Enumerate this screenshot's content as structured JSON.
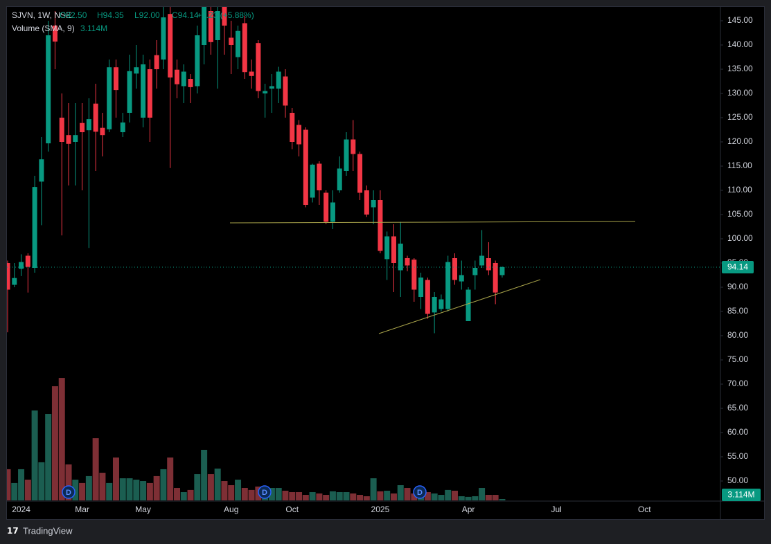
{
  "chart_data": {
    "type": "candlestick",
    "symbol": "SJVN, 1W, NSE",
    "legend_values": [
      "O92.50",
      "H94.35",
      "L92.00",
      "C94.14",
      "+5.23 (+5.88%)"
    ],
    "volume_title": "Volume (SMA, 9)",
    "volume_sma_label": "3.114M",
    "dividend_markers": [
      "D",
      "D",
      "D"
    ],
    "brand": "TradingView",
    "up_color": "#089981",
    "down_color": "#f23645",
    "volume_up_color": "#1b5e51",
    "volume_down_color": "#7e2f35",
    "ylim": [
      50,
      145
    ],
    "yticks": [
      {
        "value": 50,
        "label": "50.00"
      },
      {
        "value": 55,
        "label": "55.00"
      },
      {
        "value": 60,
        "label": "60.00"
      },
      {
        "value": 65,
        "label": "65.00"
      },
      {
        "value": 70,
        "label": "70.00"
      },
      {
        "value": 75,
        "label": "75.00"
      },
      {
        "value": 80,
        "label": "80.00"
      },
      {
        "value": 85,
        "label": "85.00"
      },
      {
        "value": 90,
        "label": "90.00"
      },
      {
        "value": 95,
        "label": "95.00"
      },
      {
        "value": 100,
        "label": "100.00"
      },
      {
        "value": 105,
        "label": "105.00"
      },
      {
        "value": 110,
        "label": "110.00"
      },
      {
        "value": 115,
        "label": "115.00"
      },
      {
        "value": 120,
        "label": "120.00"
      },
      {
        "value": 125,
        "label": "125.00"
      },
      {
        "value": 130,
        "label": "130.00"
      },
      {
        "value": 135,
        "label": "135.00"
      },
      {
        "value": 140,
        "label": "140.00"
      },
      {
        "value": 145,
        "label": "145.00"
      }
    ],
    "categories": [
      null,
      null,
      "2024",
      null,
      null,
      null,
      null,
      null,
      null,
      null,
      null,
      "Mar",
      null,
      null,
      null,
      null,
      null,
      null,
      null,
      null,
      "May",
      null,
      null,
      null,
      null,
      null,
      null,
      null,
      null,
      null,
      null,
      null,
      null,
      "Aug",
      null,
      null,
      null,
      null,
      null,
      null,
      null,
      null,
      "Oct",
      null,
      null,
      null,
      null,
      null,
      null,
      null,
      null,
      null,
      null,
      null,
      null,
      "2025",
      null,
      null,
      null,
      null,
      null,
      null,
      null,
      null,
      null,
      null,
      null,
      null,
      "Apr",
      null,
      null,
      null,
      null,
      null,
      null,
      null,
      null,
      null,
      null,
      null,
      null,
      "Jul",
      null,
      null,
      null,
      null,
      null,
      null,
      null,
      null,
      null,
      null,
      null,
      null,
      "Oct"
    ],
    "open": [
      95,
      90.5,
      93.8,
      96.5,
      94,
      111.8,
      119.7,
      144,
      125,
      121.4,
      120,
      123.9,
      122.4,
      127.9,
      122.9,
      122.6,
      135.4,
      122,
      126,
      134.1,
      125,
      135,
      137.9,
      137,
      146.4,
      134.9,
      131.5,
      133,
      131.5,
      140,
      147,
      141,
      148,
      141.5,
      137.5,
      144.5,
      134.5,
      140.4,
      130,
      131,
      131,
      133.5,
      126,
      123.5,
      122.5,
      108.5,
      115.5,
      109.5,
      103.5,
      110,
      114,
      120.5,
      117.5,
      110,
      106.5,
      108,
      95.8,
      100.5,
      93.5,
      96,
      95.7,
      88,
      91.5,
      84.8,
      85.5,
      85.5,
      96,
      91.2,
      83,
      92.5,
      94.5,
      96,
      95,
      92.5,
      null,
      null,
      null,
      null,
      null,
      null,
      null,
      null,
      null,
      null,
      null,
      null,
      null,
      null,
      null,
      null,
      null,
      null,
      null,
      null,
      null
    ],
    "high": [
      95.5,
      95,
      96.8,
      97,
      113,
      121,
      145,
      147,
      130,
      128,
      128,
      128,
      129,
      132,
      126,
      137,
      137,
      126,
      138,
      140,
      138,
      137,
      141,
      148,
      148,
      137,
      136,
      134,
      144,
      149,
      148,
      148,
      149,
      145,
      144,
      146,
      137,
      141,
      132,
      134,
      135.5,
      135,
      127,
      124.5,
      123,
      115.5,
      116,
      110,
      110,
      117,
      122,
      124.5,
      118,
      111,
      110,
      110,
      101.5,
      103,
      103.5,
      96.5,
      96,
      93,
      92,
      89,
      88.5,
      96.5,
      97,
      95.5,
      90,
      95.5,
      101.8,
      99.3,
      95.5,
      94.35,
      null,
      null,
      null,
      null,
      null,
      null,
      null,
      null,
      null,
      null,
      null,
      null,
      null,
      null,
      null,
      null,
      null,
      null,
      null,
      null,
      null
    ],
    "low": [
      80.7,
      90,
      92.3,
      88.9,
      93,
      102.8,
      118,
      135,
      100.7,
      111,
      111,
      110,
      98.1,
      114,
      117,
      122,
      125,
      121,
      124,
      131,
      123,
      120,
      131,
      135,
      114.6,
      129,
      128,
      128,
      130,
      136,
      138,
      131,
      138,
      134,
      135,
      133,
      131,
      129,
      125,
      126,
      128,
      125,
      118.5,
      117,
      106.5,
      107.5,
      107,
      103,
      102,
      109.5,
      113,
      114,
      108,
      104.5,
      103,
      97,
      91.5,
      89,
      88,
      93.3,
      87,
      85.5,
      83.5,
      80.5,
      85,
      85,
      90.5,
      89.5,
      83,
      89.5,
      94,
      92.5,
      86.5,
      92,
      null,
      null,
      null,
      null,
      null,
      null,
      null,
      null,
      null,
      null,
      null,
      null,
      null,
      null,
      null,
      null,
      null,
      null,
      null,
      null,
      null
    ],
    "close": [
      89.5,
      91.9,
      95.2,
      94.2,
      110.7,
      116.4,
      142,
      140.7,
      120,
      119.6,
      121.4,
      122,
      124.7,
      122.1,
      121.4,
      135.4,
      130.7,
      124,
      134.6,
      135.4,
      136,
      125,
      135,
      145.7,
      133.3,
      131.9,
      134.5,
      131.3,
      142,
      148,
      140.6,
      147,
      144,
      140,
      142.9,
      134.4,
      133.6,
      130.5,
      130.5,
      131.5,
      134.5,
      127.5,
      120,
      119.5,
      107,
      115.3,
      110,
      103.5,
      107.5,
      114.5,
      120.5,
      117.5,
      109.5,
      105,
      108,
      97.5,
      100.5,
      95,
      99,
      94.5,
      89.5,
      92,
      84.5,
      88,
      87.5,
      95.2,
      91.5,
      92.5,
      89.5,
      94,
      96.5,
      93.5,
      88.91,
      94.14,
      null,
      null,
      null,
      null,
      null,
      null,
      null,
      null,
      null,
      null,
      null,
      null,
      null,
      null,
      null,
      null,
      null,
      null,
      null,
      null,
      null
    ],
    "volume": [
      20.3,
      11.3,
      20.3,
      13.5,
      58.5,
      24.8,
      56.3,
      74.3,
      79.7,
      23.4,
      13.5,
      11.3,
      15.8,
      40.5,
      18,
      11.3,
      27.9,
      14.4,
      14.4,
      13.5,
      12.6,
      11.3,
      15.8,
      20.3,
      27.9,
      8.1,
      5.4,
      6.8,
      17.1,
      32.9,
      17.1,
      20.7,
      12.6,
      9.9,
      13.5,
      8.1,
      6.8,
      9,
      8.1,
      8.1,
      8.1,
      6.3,
      5.4,
      5.4,
      3.6,
      5.4,
      4.5,
      3.6,
      5.9,
      5.4,
      5.4,
      4.5,
      3.6,
      2.7,
      14.4,
      5.9,
      6.3,
      4.5,
      9.9,
      8.1,
      4.5,
      4.5,
      5.4,
      4.5,
      3.6,
      6.8,
      6.3,
      2.7,
      2.3,
      2.7,
      8.1,
      3.6,
      3.6,
      0.9,
      null,
      null,
      null,
      null,
      null,
      null,
      null,
      null,
      null,
      null,
      null,
      null,
      null,
      null,
      null,
      null,
      null,
      null,
      null,
      null,
      null
    ]
  }
}
